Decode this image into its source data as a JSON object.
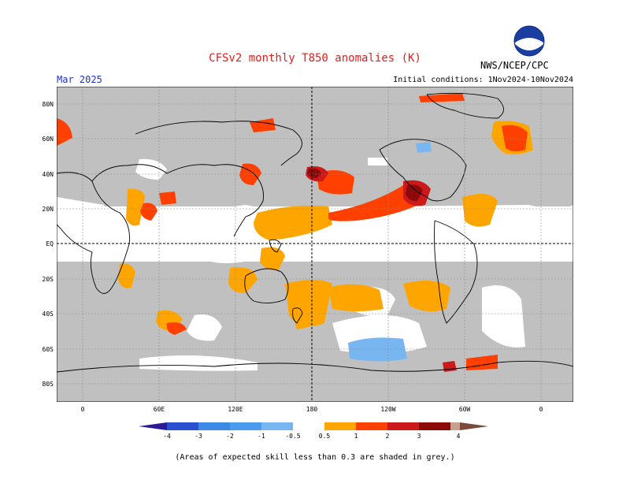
{
  "header": {
    "title": "CFSv2 monthly T850 anomalies (K)",
    "month": "Mar 2025",
    "initial_conditions": "Initial conditions: 1Nov2024-10Nov2024",
    "agency": "NWS/NCEP/CPC",
    "logo_text": "NOAA"
  },
  "axes": {
    "lat_labels": [
      "80N",
      "60N",
      "40N",
      "20N",
      "EQ",
      "20S",
      "40S",
      "60S",
      "80S"
    ],
    "lon_labels": [
      "0",
      "60E",
      "120E",
      "180",
      "120W",
      "60W",
      "0"
    ]
  },
  "colorbar": {
    "labels": [
      "-4",
      "-3",
      "-2",
      "-1",
      "-0.5",
      "0.5",
      "1",
      "2",
      "3",
      "4"
    ],
    "colors": [
      "#2a1a9a",
      "#2a4fd0",
      "#3a8ae6",
      "#78b6f2",
      "#ffffff",
      "#ffa500",
      "#ff4000",
      "#cc1a1a",
      "#8c0a0a",
      "#c8a090",
      "#7a4a3a"
    ]
  },
  "legend": {
    "grey_color": "#c0c0c0",
    "footnote": "(Areas of expected skill less than 0.3 are shaded in grey.)"
  }
}
